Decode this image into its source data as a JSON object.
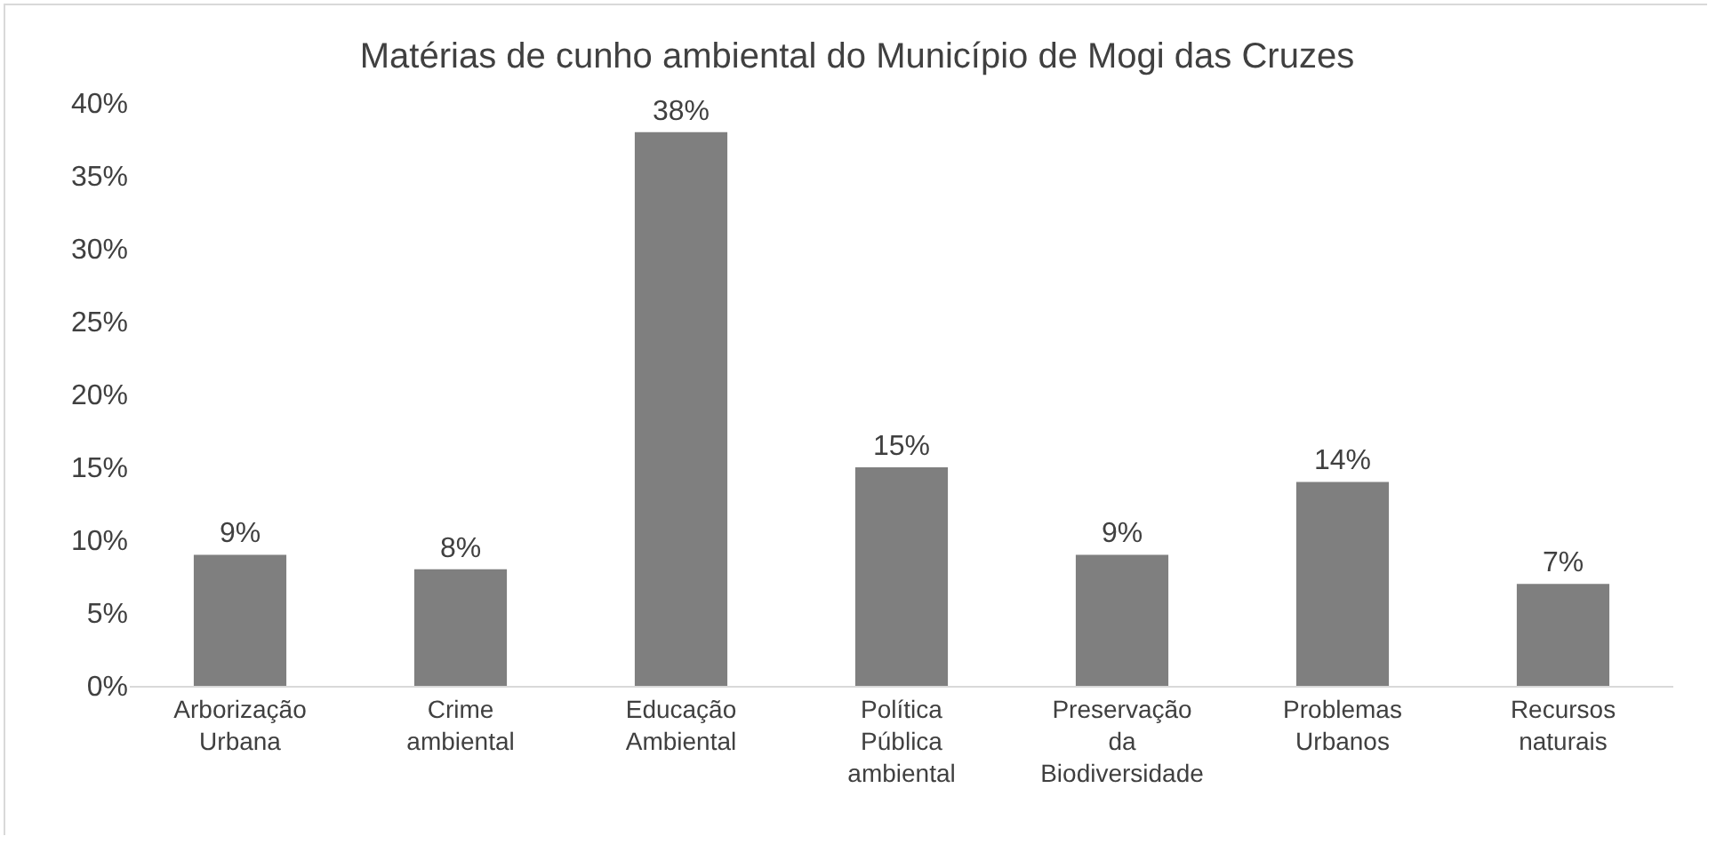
{
  "chart_data": {
    "type": "bar",
    "title": "Matérias de cunho ambiental do Município de Mogi das Cruzes",
    "categories": [
      "Arborização Urbana",
      "Crime ambiental",
      "Educação Ambiental",
      "Política Pública ambiental",
      "Preservação da Biodiversidade",
      "Problemas Urbanos",
      "Recursos naturais"
    ],
    "values": [
      9,
      8,
      38,
      15,
      9,
      14,
      7
    ],
    "value_labels": [
      "9%",
      "8%",
      "38%",
      "15%",
      "9%",
      "14%",
      "7%"
    ],
    "color": "#7f7f7f",
    "ylim": [
      0,
      40
    ],
    "yticks": [
      {
        "value": 0,
        "label": "0%"
      },
      {
        "value": 5,
        "label": "5%"
      },
      {
        "value": 10,
        "label": "10%"
      },
      {
        "value": 15,
        "label": "15%"
      },
      {
        "value": 20,
        "label": "20%"
      },
      {
        "value": 25,
        "label": "25%"
      },
      {
        "value": 30,
        "label": "30%"
      },
      {
        "value": 35,
        "label": "35%"
      },
      {
        "value": 40,
        "label": "40%"
      }
    ],
    "grid": false,
    "legend": false
  }
}
